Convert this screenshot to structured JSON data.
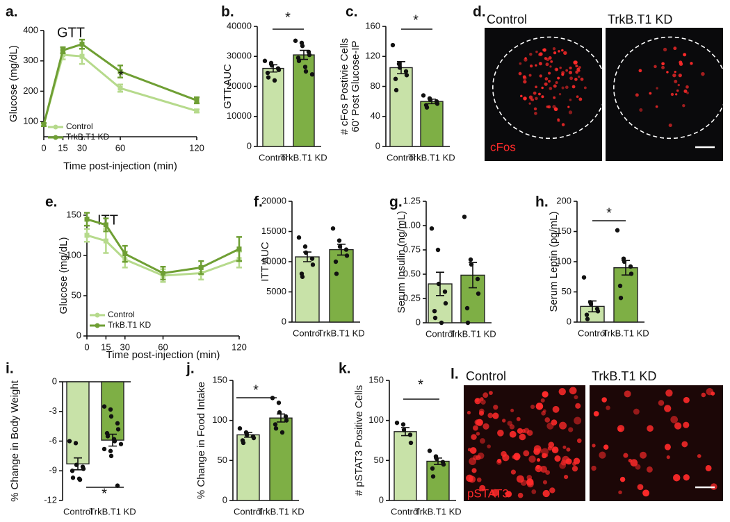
{
  "chart_data": [
    {
      "type": "line",
      "label": "a.",
      "title": "GTT",
      "xlabel": "Time post-injection (min)",
      "ylabel": [
        "Glucose (mg/dL)"
      ],
      "x": [
        0,
        15,
        30,
        60,
        120
      ],
      "xlim": [
        0,
        120
      ],
      "xticks": [
        0,
        15,
        30,
        60,
        120
      ],
      "ylim": [
        50,
        400
      ],
      "yticks": [
        100,
        200,
        300,
        400
      ],
      "annotation": "*",
      "series": [
        {
          "name": "Control",
          "color": "#b6da8c",
          "values": [
            90,
            320,
            315,
            210,
            135
          ],
          "errors": [
            5,
            15,
            25,
            12,
            5
          ]
        },
        {
          "name": "TrkB.T1 KD",
          "color": "#6f9f34",
          "values": [
            90,
            335,
            355,
            265,
            170
          ],
          "errors": [
            5,
            10,
            15,
            20,
            10
          ]
        }
      ]
    },
    {
      "type": "bar",
      "label": "b.",
      "ylabel": [
        "GTT AUC"
      ],
      "categories": [
        "Control",
        "TrkB.T1 KD"
      ],
      "colors": [
        "#c8e2a8",
        "#7eaf45"
      ],
      "values": [
        26000,
        30500
      ],
      "errors": [
        1200,
        1500
      ],
      "points": [
        [
          28500,
          27800,
          27000,
          26000,
          25500,
          24500,
          23000,
          22000
        ],
        [
          35200,
          34500,
          33500,
          31500,
          30500,
          29500,
          28500,
          26500,
          25000,
          24000
        ]
      ],
      "ylim": [
        0,
        40000
      ],
      "yticks": [
        0,
        10000,
        20000,
        30000,
        40000
      ],
      "annotation": "*"
    },
    {
      "type": "bar",
      "label": "c.",
      "ylabel": [
        "# cFos Postivie Cells",
        "60' Post Glucose-IP"
      ],
      "categories": [
        "Control",
        "TrkB.T1 KD"
      ],
      "colors": [
        "#c8e2a8",
        "#7eaf45"
      ],
      "values": [
        105,
        60
      ],
      "errors": [
        8,
        3
      ],
      "points": [
        [
          135,
          110,
          105,
          100,
          95,
          90,
          75
        ],
        [
          68,
          64,
          62,
          60,
          57,
          55,
          52
        ]
      ],
      "ylim": [
        0,
        160
      ],
      "yticks": [
        0,
        40,
        80,
        120,
        160
      ],
      "annotation": "*"
    },
    {
      "type": "image",
      "label": "d.",
      "panels": [
        "Control",
        "TrkB.T1 KD"
      ],
      "stain": "cFos"
    },
    {
      "type": "line",
      "label": "e.",
      "title": "ITT",
      "xlabel": "Time post-injection (min)",
      "ylabel": [
        "Glucose (mg/dL)"
      ],
      "x": [
        0,
        15,
        30,
        60,
        90,
        120
      ],
      "xlim": [
        0,
        120
      ],
      "xticks": [
        0,
        15,
        30,
        60,
        120
      ],
      "ylim": [
        0,
        150
      ],
      "yticks": [
        0,
        50,
        100,
        150
      ],
      "series": [
        {
          "name": "Control",
          "color": "#b6da8c",
          "values": [
            125,
            118,
            95,
            75,
            78,
            95
          ],
          "errors": [
            8,
            15,
            10,
            8,
            8,
            10
          ]
        },
        {
          "name": "TrkB.T1 KD",
          "color": "#6f9f34",
          "values": [
            145,
            138,
            102,
            78,
            85,
            108
          ],
          "errors": [
            8,
            8,
            10,
            8,
            8,
            15
          ]
        }
      ]
    },
    {
      "type": "bar",
      "label": "f.",
      "ylabel": [
        "ITT AUC"
      ],
      "categories": [
        "Control",
        "TrkB.T1 KD"
      ],
      "colors": [
        "#c8e2a8",
        "#7eaf45"
      ],
      "values": [
        10800,
        12000
      ],
      "errors": [
        800,
        900
      ],
      "points": [
        [
          14000,
          12500,
          11500,
          10500,
          9500,
          8000,
          7500
        ],
        [
          15500,
          13500,
          12500,
          12000,
          11000,
          10000,
          8000
        ]
      ],
      "ylim": [
        0,
        20000
      ],
      "yticks": [
        0,
        5000,
        10000,
        15000,
        20000
      ]
    },
    {
      "type": "bar",
      "label": "g.",
      "ylabel": [
        "Serum Insulin (ng/mL)"
      ],
      "categories": [
        "Control",
        "TrkB.T1 KD"
      ],
      "colors": [
        "#c8e2a8",
        "#7eaf45"
      ],
      "values": [
        0.4,
        0.49
      ],
      "errors": [
        0.12,
        0.13
      ],
      "points": [
        [
          0.97,
          0.75,
          0.4,
          0.32,
          0.2,
          0.12,
          0.05,
          0.0
        ],
        [
          1.09,
          0.65,
          0.6,
          0.45,
          0.3,
          0.15,
          0.0
        ]
      ],
      "ylim": [
        0,
        1.25
      ],
      "yticks": [
        0,
        0.25,
        {
          "value": 0.5,
          "label": "0.50"
        },
        0.75,
        {
          "value": 1,
          "label": "1.00"
        },
        1.25
      ]
    },
    {
      "type": "bar",
      "label": "h.",
      "ylabel": [
        "Serum Leptin (pg/mL)"
      ],
      "categories": [
        "Control",
        "TrkB.T1 KD"
      ],
      "colors": [
        "#c8e2a8",
        "#7eaf45"
      ],
      "values": [
        26,
        90
      ],
      "errors": [
        9,
        12
      ],
      "points": [
        [
          74,
          33,
          30,
          22,
          18,
          12,
          5
        ],
        [
          152,
          105,
          100,
          92,
          80,
          60,
          40
        ]
      ],
      "ylim": [
        0,
        200
      ],
      "yticks": [
        0,
        50,
        100,
        150,
        200
      ],
      "annotation": "*"
    },
    {
      "type": "bar",
      "label": "i.",
      "ylabel": [
        "% Change in Body Weight"
      ],
      "categories": [
        "Control",
        "TrkB.T1 KD"
      ],
      "colors": [
        "#c8e2a8",
        "#7eaf45"
      ],
      "values": [
        -8.3,
        -5.9
      ],
      "errors": [
        0.6,
        0.6
      ],
      "points": [
        [
          -6.0,
          -6.2,
          -8.4,
          -8.6,
          -8.8,
          -9.0,
          -9.7,
          -9.8,
          -9.9
        ],
        [
          -2.5,
          -2.8,
          -3.5,
          -4.2,
          -4.8,
          -5.2,
          -5.5,
          -5.8,
          -6.0,
          -6.3,
          -6.8,
          -7.0,
          -7.5,
          -10.5
        ]
      ],
      "ylim": [
        -12,
        0
      ],
      "yticks": [
        0,
        -3,
        -6,
        -9,
        -12
      ],
      "annotation": "*"
    },
    {
      "type": "bar",
      "label": "j.",
      "ylabel": [
        "% Change in Food Intake"
      ],
      "categories": [
        "Control",
        "TrkB.T1 KD"
      ],
      "colors": [
        "#c8e2a8",
        "#7eaf45"
      ],
      "values": [
        82,
        103
      ],
      "errors": [
        3,
        5
      ],
      "points": [
        [
          90,
          85,
          82,
          80,
          78,
          75,
          72
        ],
        [
          128,
          122,
          110,
          105,
          100,
          95,
          90,
          85
        ]
      ],
      "ylim": [
        0,
        150
      ],
      "yticks": [
        0,
        50,
        100,
        150
      ],
      "annotation": "*"
    },
    {
      "type": "bar",
      "label": "k.",
      "ylabel": [
        "# pSTAT3 Positive Cells"
      ],
      "categories": [
        "Control",
        "TrkB.T1 KD"
      ],
      "colors": [
        "#c8e2a8",
        "#7eaf45"
      ],
      "values": [
        86,
        49
      ],
      "errors": [
        5,
        4
      ],
      "points": [
        [
          97,
          95,
          88,
          82,
          72
        ],
        [
          62,
          55,
          52,
          48,
          45,
          40,
          30
        ]
      ],
      "ylim": [
        0,
        150
      ],
      "yticks": [
        0,
        50,
        100,
        150
      ],
      "annotation": "*"
    },
    {
      "type": "image",
      "label": "l.",
      "panels": [
        "Control",
        "TrkB.T1 KD"
      ],
      "stain": "pSTAT3"
    }
  ]
}
